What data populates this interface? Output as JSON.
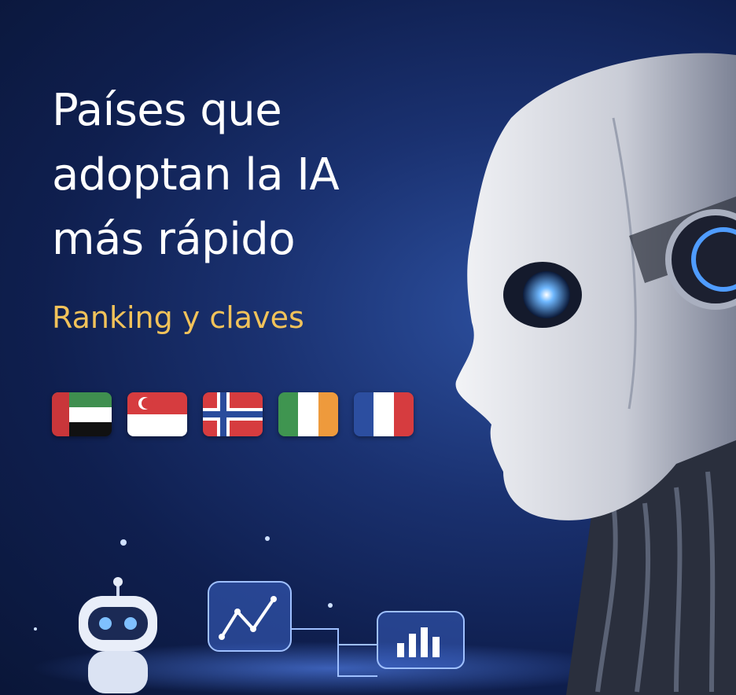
{
  "poster": {
    "title": "Países que\nadoptan la IA\nmás rápido",
    "subtitle": "Ranking y claves",
    "flags": [
      {
        "country": "UAE",
        "icon": "uae-flag-icon"
      },
      {
        "country": "Singapore",
        "icon": "singapore-flag-icon"
      },
      {
        "country": "Norway",
        "icon": "norway-flag-icon"
      },
      {
        "country": "Ireland",
        "icon": "ireland-flag-icon"
      },
      {
        "country": "France",
        "icon": "france-flag-icon"
      }
    ],
    "colors": {
      "background": "#1a3170",
      "subtitle": "#f1c25a",
      "title": "#ffffff",
      "eye_glow": "#6fb8ff"
    }
  }
}
